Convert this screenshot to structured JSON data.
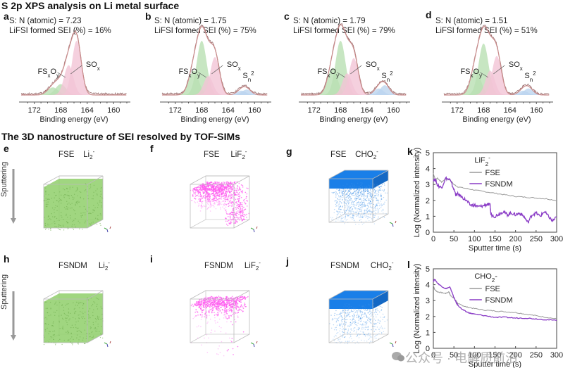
{
  "titles": {
    "xps_section": "S 2p XPS analysis on Li metal surface",
    "tof_section": "The 3D nanostructure of SEI resolved by TOF-SIMs"
  },
  "colors": {
    "envelope": "#c98b8b",
    "raw": "#9a6f6f",
    "green_fill": "#b9e0b3",
    "pink_fill": "#f2c4d6",
    "blue_fill": "#bcd4ef",
    "li2_cube": "#8fcf6a",
    "lif2_cube": "#ff5cf0",
    "cho2_cube": "#1a7fe8",
    "fse_line": "#9a9a9a",
    "fsndm_line": "#8a3cc6"
  },
  "chart_data": [
    {
      "panel": "a",
      "type": "line",
      "annotation_line1": "S: N (atomic) = 7.23",
      "annotation_line2": "LiFSI formed SEI (%) = 16%",
      "xlabel": "Binding energy (eV)",
      "xlim": [
        174,
        158
      ],
      "x_ticks": [
        172,
        168,
        164,
        160
      ],
      "peak_labels": [
        "FSxOy",
        "SOx"
      ],
      "components": [
        {
          "name": "FSxOy-1",
          "center": 169.2,
          "height": 0.14,
          "width": 0.8,
          "color": "green"
        },
        {
          "name": "FSxOy-2",
          "center": 168.0,
          "height": 0.2,
          "width": 0.8,
          "color": "green"
        },
        {
          "name": "SOx-1",
          "center": 166.8,
          "height": 0.55,
          "width": 0.7,
          "color": "pink"
        },
        {
          "name": "SOx-2",
          "center": 165.6,
          "height": 1.0,
          "width": 0.7,
          "color": "pink"
        }
      ]
    },
    {
      "panel": "b",
      "type": "line",
      "annotation_line1": "S: N (atomic) = 1.75",
      "annotation_line2": "LiFSI formed SEI (%) = 75%",
      "xlabel": "Binding energy (eV)",
      "xlim": [
        174,
        158
      ],
      "x_ticks": [
        172,
        168,
        164,
        160
      ],
      "peak_labels": [
        "FSxOy",
        "SOx",
        "Sn2"
      ],
      "components": [
        {
          "name": "FSxOy-1",
          "center": 169.2,
          "height": 0.45,
          "width": 0.75,
          "color": "green"
        },
        {
          "name": "FSxOy-2",
          "center": 168.0,
          "height": 1.0,
          "width": 0.75,
          "color": "green"
        },
        {
          "name": "SOx-1",
          "center": 167.0,
          "height": 0.35,
          "width": 0.7,
          "color": "pink"
        },
        {
          "name": "SOx-2",
          "center": 166.0,
          "height": 0.7,
          "width": 0.7,
          "color": "pink"
        },
        {
          "name": "Sn2-1",
          "center": 162.0,
          "height": 0.08,
          "width": 0.7,
          "color": "blue"
        },
        {
          "name": "Sn2-2",
          "center": 161.2,
          "height": 0.1,
          "width": 0.7,
          "color": "blue"
        }
      ]
    },
    {
      "panel": "c",
      "type": "line",
      "annotation_line1": "S: N (atomic) = 1.79",
      "annotation_line2": "LiFSI formed SEI (%) = 79%",
      "xlabel": "Binding energy (eV)",
      "xlim": [
        174,
        158
      ],
      "x_ticks": [
        172,
        168,
        164,
        160
      ],
      "peak_labels": [
        "FSxOy",
        "SOx",
        "Sn2"
      ],
      "components": [
        {
          "name": "FSxOy-1",
          "center": 169.2,
          "height": 0.5,
          "width": 0.75,
          "color": "green"
        },
        {
          "name": "FSxOy-2",
          "center": 168.0,
          "height": 1.0,
          "width": 0.75,
          "color": "green"
        },
        {
          "name": "SOx-1",
          "center": 167.0,
          "height": 0.4,
          "width": 0.7,
          "color": "pink"
        },
        {
          "name": "SOx-2",
          "center": 166.0,
          "height": 0.68,
          "width": 0.7,
          "color": "pink"
        },
        {
          "name": "Sn2-1",
          "center": 162.2,
          "height": 0.12,
          "width": 0.7,
          "color": "blue"
        },
        {
          "name": "Sn2-2",
          "center": 161.3,
          "height": 0.18,
          "width": 0.7,
          "color": "blue"
        }
      ]
    },
    {
      "panel": "d",
      "type": "line",
      "annotation_line1": "S: N (atomic) = 1.51",
      "annotation_line2": "LiFSI formed SEI (%) = 51%",
      "xlabel": "Binding energy (eV)",
      "xlim": [
        174,
        158
      ],
      "x_ticks": [
        172,
        168,
        164,
        160
      ],
      "peak_labels": [
        "FSxOy",
        "SOx",
        "Sn2"
      ],
      "components": [
        {
          "name": "FSxOy-1",
          "center": 169.2,
          "height": 0.48,
          "width": 0.75,
          "color": "green"
        },
        {
          "name": "FSxOy-2",
          "center": 168.0,
          "height": 0.95,
          "width": 0.75,
          "color": "green"
        },
        {
          "name": "SOx-1",
          "center": 167.0,
          "height": 0.45,
          "width": 0.7,
          "color": "pink"
        },
        {
          "name": "SOx-2",
          "center": 166.0,
          "height": 0.72,
          "width": 0.7,
          "color": "pink"
        },
        {
          "name": "Sn2-1",
          "center": 162.0,
          "height": 0.08,
          "width": 0.7,
          "color": "blue"
        },
        {
          "name": "Sn2-2",
          "center": 161.2,
          "height": 0.12,
          "width": 0.7,
          "color": "blue"
        }
      ]
    },
    {
      "panel": "k",
      "type": "line",
      "legend_title": "LiF2-",
      "xlabel": "Sputter time (s)",
      "ylabel": "Log (Normalized intensity)",
      "xlim": [
        0,
        300
      ],
      "ylim": [
        0,
        5
      ],
      "x_ticks": [
        0,
        50,
        100,
        150,
        200,
        250,
        300
      ],
      "y_ticks": [
        0,
        1,
        2,
        3,
        4,
        5
      ],
      "legend_position": "top-right",
      "series": [
        {
          "name": "FSE",
          "x": [
            0,
            5,
            10,
            20,
            30,
            40,
            50,
            60,
            80,
            100,
            125,
            150,
            175,
            200,
            225,
            250,
            275,
            300
          ],
          "y": [
            3.7,
            3.3,
            3.4,
            3.15,
            3.35,
            3.3,
            3.0,
            2.85,
            2.75,
            2.65,
            2.55,
            2.45,
            2.35,
            2.25,
            2.2,
            2.15,
            2.1,
            2.0
          ]
        },
        {
          "name": "FSNDM",
          "x": [
            0,
            5,
            10,
            20,
            30,
            40,
            50,
            55,
            60,
            70,
            80,
            90,
            100,
            110,
            120,
            130,
            138,
            140,
            150,
            160,
            170,
            180,
            190,
            200,
            210,
            220,
            230,
            240,
            250,
            260,
            270,
            280,
            290,
            300
          ],
          "y": [
            3.3,
            3.3,
            2.95,
            2.8,
            3.4,
            3.3,
            2.7,
            2.35,
            2.4,
            2.2,
            2.0,
            1.7,
            1.7,
            1.6,
            1.65,
            1.75,
            1.7,
            1.1,
            1.0,
            1.15,
            1.3,
            1.1,
            1.2,
            1.1,
            1.2,
            1.0,
            0.6,
            1.1,
            1.2,
            1.0,
            1.3,
            1.0,
            0.7,
            0.95
          ]
        }
      ]
    },
    {
      "panel": "l",
      "type": "line",
      "legend_title": "CHO2-",
      "xlabel": "Sputter time (s)",
      "ylabel": "Log (Normalized intensity)",
      "xlim": [
        0,
        300
      ],
      "ylim": [
        0,
        5
      ],
      "x_ticks": [
        0,
        50,
        100,
        150,
        200,
        250,
        300
      ],
      "y_ticks": [
        0,
        1,
        2,
        3,
        4,
        5
      ],
      "legend_position": "top-right",
      "series": [
        {
          "name": "FSE",
          "x": [
            0,
            3,
            10,
            20,
            30,
            38,
            42,
            48,
            55,
            60,
            70,
            80,
            100,
            125,
            150,
            175,
            200,
            225,
            250,
            275,
            300
          ],
          "y": [
            4.0,
            3.7,
            3.55,
            3.5,
            3.45,
            3.55,
            3.3,
            3.2,
            3.0,
            2.8,
            2.7,
            2.6,
            2.5,
            2.4,
            2.35,
            2.3,
            2.25,
            2.15,
            2.05,
            1.95,
            1.85
          ]
        },
        {
          "name": "FSNDM",
          "x": [
            0,
            3,
            10,
            20,
            30,
            40,
            45,
            50,
            55,
            60,
            70,
            80,
            90,
            100,
            125,
            150,
            175,
            200,
            225,
            250,
            275,
            300
          ],
          "y": [
            4.2,
            4.35,
            4.1,
            3.9,
            3.75,
            3.85,
            3.55,
            3.2,
            2.9,
            2.7,
            2.45,
            2.3,
            2.2,
            2.15,
            2.05,
            1.95,
            1.95,
            1.9,
            1.9,
            1.85,
            1.8,
            1.75
          ]
        }
      ]
    }
  ],
  "cubes": [
    {
      "panel": "e",
      "sample": "FSE",
      "species": "Li2-",
      "type": "li2",
      "distribution": "uniform"
    },
    {
      "panel": "f",
      "sample": "FSE",
      "species": "LiF2-",
      "type": "lif2",
      "distribution": "top and one side"
    },
    {
      "panel": "g",
      "sample": "FSE",
      "species": "CHO2-",
      "type": "cho2",
      "distribution": "dense top, diffuse bulk"
    },
    {
      "panel": "h",
      "sample": "FSNDM",
      "species": "Li2-",
      "type": "li2",
      "distribution": "uniform"
    },
    {
      "panel": "i",
      "sample": "FSNDM",
      "species": "LiF2-",
      "type": "lif2",
      "distribution": "top layer"
    },
    {
      "panel": "j",
      "sample": "FSNDM",
      "species": "CHO2-",
      "type": "cho2",
      "distribution": "dense top, sparse bulk"
    }
  ],
  "sputtering_label": "Sputtering",
  "watermark": "公众号 · 电解质前沿"
}
